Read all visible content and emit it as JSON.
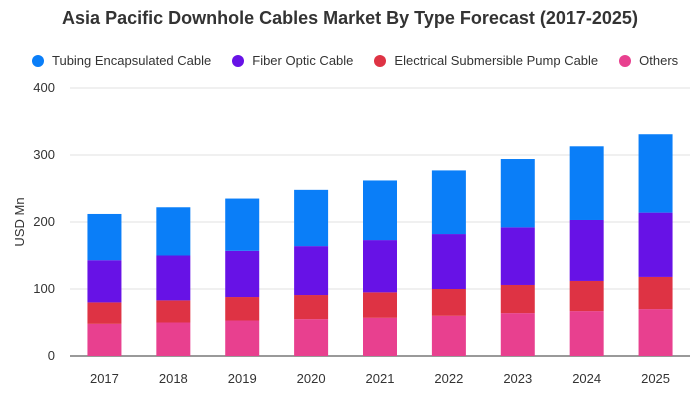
{
  "chart_data": {
    "type": "bar",
    "stacked": true,
    "title": "Asia Pacific Downhole Cables Market By Type Forecast (2017-2025)",
    "xlabel": "",
    "ylabel": "USD Mn",
    "ylim": [
      0,
      400
    ],
    "yticks": [
      0,
      100,
      200,
      300,
      400
    ],
    "grid": true,
    "legend_position": "top",
    "categories": [
      "2017",
      "2018",
      "2019",
      "2020",
      "2021",
      "2022",
      "2023",
      "2024",
      "2025"
    ],
    "series": [
      {
        "name": "Others",
        "color": "#e8408f",
        "values": [
          48,
          50,
          53,
          55,
          57,
          60,
          64,
          67,
          70
        ]
      },
      {
        "name": "Electrical Submersible Pump Cable",
        "color": "#de3344",
        "values": [
          32,
          33,
          35,
          36,
          38,
          40,
          42,
          45,
          48
        ]
      },
      {
        "name": "Fiber Optic Cable",
        "color": "#6712e6",
        "values": [
          63,
          67,
          69,
          73,
          78,
          82,
          86,
          91,
          96
        ]
      },
      {
        "name": "Tubing Encapsulated Cable",
        "color": "#0a7ef8",
        "values": [
          69,
          72,
          78,
          84,
          89,
          95,
          102,
          110,
          117
        ]
      }
    ],
    "legend_order": [
      "Tubing Encapsulated Cable",
      "Fiber Optic Cable",
      "Electrical Submersible Pump Cable",
      "Others"
    ]
  }
}
